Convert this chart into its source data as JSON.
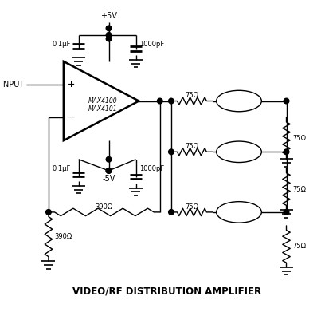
{
  "title": "VIDEO/RF DISTRIBUTION AMPLIFIER",
  "title_fontsize": 8.5,
  "bg_color": "#ffffff",
  "line_color": "#000000",
  "labels": {
    "input": "INPUT",
    "plus5v": "+5V",
    "minus5v": "-5V",
    "cap1": "0.1μF",
    "cap2": "0.1μF",
    "cap3": "1000pF",
    "cap4": "1000pF",
    "res1": "390Ω",
    "res2": "390Ω",
    "r75a": "75Ω",
    "r75b": "75Ω",
    "r75c": "75Ω",
    "r75d": "75Ω",
    "r75e": "75Ω",
    "r75f": "75Ω",
    "opamp": "MAX4100\nMAX4101"
  }
}
